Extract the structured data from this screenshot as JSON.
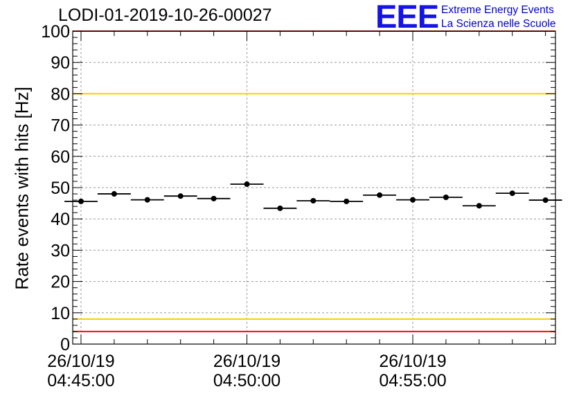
{
  "chart_data": {
    "type": "scatter",
    "title": "LODI-01-2019-10-26-00027",
    "ylabel": "Rate events with hits [Hz]",
    "xlabel": "",
    "ylim": [
      0,
      100
    ],
    "yticks": [
      0,
      10,
      20,
      30,
      40,
      50,
      60,
      70,
      80,
      90,
      100
    ],
    "xlim_minutes": [
      -0.25,
      14.3
    ],
    "x_ticks": [
      {
        "minute": 0,
        "date": "26/10/19",
        "time": "04:45:00"
      },
      {
        "minute": 5,
        "date": "26/10/19",
        "time": "04:50:00"
      },
      {
        "minute": 10,
        "date": "26/10/19",
        "time": "04:55:00"
      }
    ],
    "bin_width_minutes": 1,
    "points": [
      {
        "x": 0.0,
        "y": 45.6
      },
      {
        "x": 1.0,
        "y": 48.0
      },
      {
        "x": 2.0,
        "y": 46.1
      },
      {
        "x": 3.0,
        "y": 47.3
      },
      {
        "x": 4.0,
        "y": 46.5
      },
      {
        "x": 5.0,
        "y": 51.1
      },
      {
        "x": 6.0,
        "y": 43.4
      },
      {
        "x": 7.0,
        "y": 45.8
      },
      {
        "x": 8.0,
        "y": 45.6
      },
      {
        "x": 9.0,
        "y": 47.6
      },
      {
        "x": 10.0,
        "y": 46.1
      },
      {
        "x": 11.0,
        "y": 46.9
      },
      {
        "x": 12.0,
        "y": 44.2
      },
      {
        "x": 13.0,
        "y": 48.2
      },
      {
        "x": 14.0,
        "y": 46.0
      }
    ],
    "reference_lines": [
      {
        "y": 100,
        "color": "#ff0000"
      },
      {
        "y": 80,
        "color": "#ffcc00"
      },
      {
        "y": 8,
        "color": "#ffcc00"
      },
      {
        "y": 4,
        "color": "#ff0000"
      }
    ],
    "grid": true
  },
  "logo": {
    "mark": "EEE",
    "line1": "Extreme Energy Events",
    "line2": "La Scienza nelle Scuole"
  }
}
